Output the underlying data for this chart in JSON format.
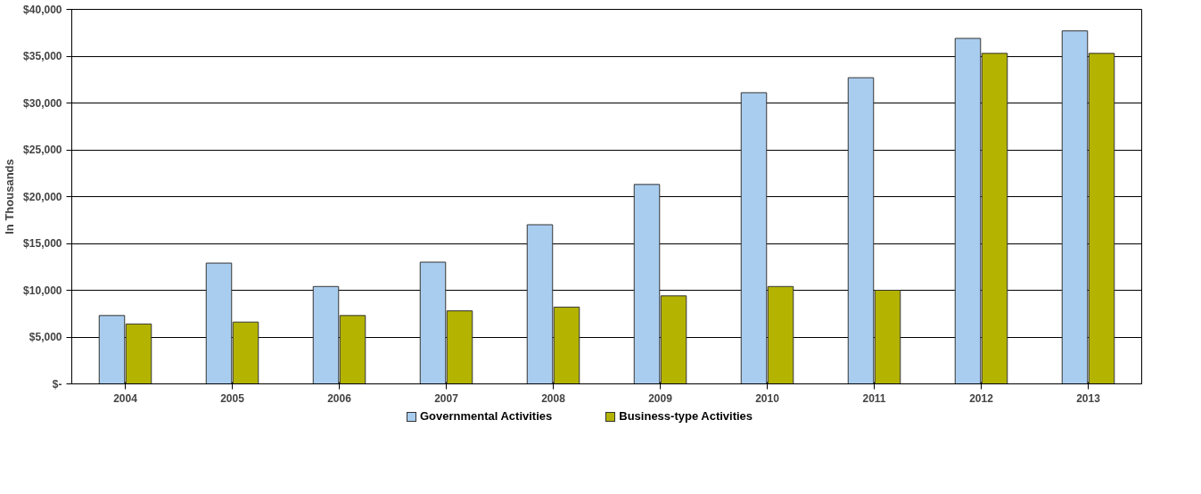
{
  "chart_data": {
    "type": "bar",
    "ylabel": "In Thousands",
    "categories": [
      "2004",
      "2005",
      "2006",
      "2007",
      "2008",
      "2009",
      "2010",
      "2011",
      "2012",
      "2013"
    ],
    "series": [
      {
        "name": "Governmental Activities",
        "color": "#a9cdef",
        "values": [
          7300,
          12900,
          10400,
          13000,
          17000,
          21300,
          31100,
          32700,
          36900,
          37700
        ]
      },
      {
        "name": "Business-type Activities",
        "color": "#b3b300",
        "values": [
          6400,
          6600,
          7300,
          7800,
          8200,
          9400,
          10400,
          10000,
          35300,
          35300
        ]
      }
    ],
    "ylim": [
      0,
      40000
    ],
    "yticks": [
      {
        "value": 0,
        "label": "$-"
      },
      {
        "value": 5000,
        "label": "$5,000"
      },
      {
        "value": 10000,
        "label": "$10,000"
      },
      {
        "value": 15000,
        "label": "$15,000"
      },
      {
        "value": 20000,
        "label": "$20,000"
      },
      {
        "value": 25000,
        "label": "$25,000"
      },
      {
        "value": 30000,
        "label": "$30,000"
      },
      {
        "value": 35000,
        "label": "$35,000"
      },
      {
        "value": 40000,
        "label": "$40,000"
      }
    ],
    "grid": "y",
    "legend": "bottom"
  }
}
